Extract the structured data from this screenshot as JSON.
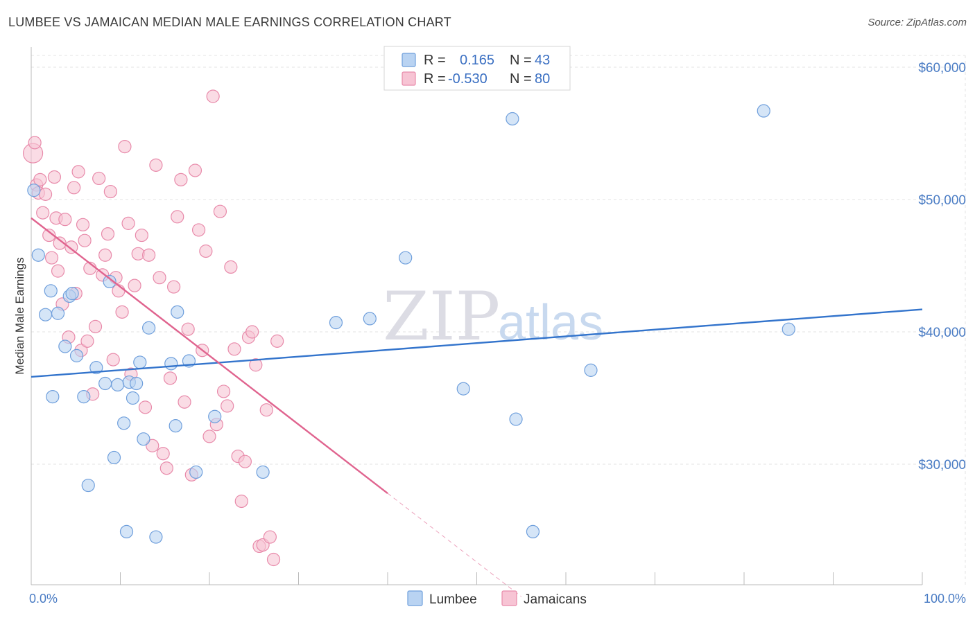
{
  "title": "LUMBEE VS JAMAICAN MEDIAN MALE EARNINGS CORRELATION CHART",
  "source": "Source: ZipAtlas.com",
  "watermark": {
    "part1": "ZIP",
    "part2": "atlas"
  },
  "colors": {
    "lumbee_fill": "#b9d3f2",
    "lumbee_stroke": "#6f9fdc",
    "lumbee_line": "#3374cc",
    "jam_fill": "#f7c4d4",
    "jam_stroke": "#e88aaa",
    "jam_line": "#e0648f",
    "tick_text": "#4a7cc4",
    "grid": "#e3e3e3"
  },
  "legend": {
    "rows": [
      {
        "r_label": "R =",
        "r_value": "0.165",
        "n_label": "N =",
        "n_value": "43"
      },
      {
        "r_label": "R =",
        "r_value": "-0.530",
        "n_label": "N =",
        "n_value": "80"
      }
    ]
  },
  "chart_data": {
    "type": "scatter",
    "title": "LUMBEE VS JAMAICAN MEDIAN MALE EARNINGS CORRELATION CHART",
    "xlabel": "",
    "ylabel": "Median Male Earnings",
    "xlim": [
      0,
      100
    ],
    "ylim": [
      20000,
      61000
    ],
    "x_tick_labels": [
      "0.0%",
      "100.0%"
    ],
    "y_ticks": [
      30000,
      40000,
      50000,
      60000
    ],
    "y_tick_labels": [
      "$30,000",
      "$40,000",
      "$50,000",
      "$60,000"
    ],
    "grid": true,
    "series": [
      {
        "name": "Lumbee",
        "r": 0.165,
        "n": 43,
        "trend": {
          "x": [
            0,
            100
          ],
          "y": [
            36600,
            41700
          ]
        },
        "x": [
          0.3,
          0.8,
          1.6,
          2.2,
          2.4,
          3.0,
          3.8,
          4.3,
          4.6,
          5.1,
          5.9,
          6.4,
          7.3,
          8.3,
          8.8,
          9.3,
          9.7,
          10.4,
          10.7,
          11.0,
          11.4,
          11.8,
          12.2,
          12.6,
          13.2,
          14.0,
          15.7,
          16.2,
          16.4,
          17.7,
          18.5,
          20.6,
          26.0,
          34.2,
          38.0,
          42.0,
          48.5,
          54.0,
          54.4,
          56.3,
          62.8,
          82.2,
          85.0
        ],
        "y": [
          50700,
          45800,
          41300,
          43100,
          35100,
          41400,
          38900,
          42700,
          42900,
          38200,
          35100,
          28400,
          37300,
          36100,
          43800,
          30500,
          36000,
          33100,
          24900,
          36200,
          35000,
          36100,
          37700,
          31900,
          40300,
          24500,
          37600,
          32900,
          41500,
          37800,
          29400,
          33600,
          29400,
          40700,
          41000,
          45600,
          35700,
          56100,
          33400,
          24900,
          37100,
          56700,
          40200
        ]
      },
      {
        "name": "Jamaicans",
        "r": -0.53,
        "n": 80,
        "trend": {
          "x": [
            0,
            40
          ],
          "y": [
            48600,
            27800
          ]
        },
        "trend_ext": {
          "x": [
            40,
            55
          ],
          "y": [
            27800,
            20000
          ]
        },
        "x": [
          0.2,
          0.4,
          0.6,
          0.8,
          1.0,
          1.3,
          1.6,
          2.0,
          2.3,
          2.6,
          2.8,
          3.0,
          3.2,
          3.5,
          3.8,
          4.2,
          4.5,
          4.8,
          5.0,
          5.3,
          5.6,
          5.8,
          6.0,
          6.3,
          6.6,
          6.9,
          7.2,
          7.6,
          8.0,
          8.3,
          8.6,
          8.9,
          9.2,
          9.5,
          9.8,
          10.2,
          10.5,
          10.9,
          11.2,
          11.6,
          12.0,
          12.4,
          12.8,
          13.2,
          13.6,
          14.0,
          14.4,
          14.8,
          15.2,
          15.6,
          16.0,
          16.4,
          16.8,
          17.2,
          17.6,
          18.0,
          18.4,
          18.8,
          19.2,
          19.6,
          20.0,
          20.4,
          20.8,
          21.2,
          21.6,
          22.0,
          22.4,
          22.8,
          23.2,
          23.6,
          24.0,
          24.4,
          24.8,
          25.2,
          25.6,
          26.0,
          26.4,
          26.8,
          27.2,
          27.6
        ],
        "y": [
          53500,
          54300,
          51100,
          50500,
          51500,
          49000,
          50400,
          47300,
          45600,
          51700,
          48600,
          44600,
          46700,
          42100,
          48500,
          39600,
          46400,
          50900,
          42900,
          52100,
          38600,
          48100,
          46900,
          39300,
          44800,
          35300,
          40400,
          51600,
          44300,
          45800,
          47400,
          50600,
          37900,
          44100,
          43100,
          41500,
          54000,
          48200,
          36800,
          43500,
          45900,
          47300,
          34300,
          45800,
          31400,
          52600,
          44100,
          30800,
          29700,
          36500,
          43400,
          48700,
          51500,
          34700,
          40200,
          29200,
          52200,
          47700,
          38600,
          46100,
          32100,
          57800,
          33000,
          49100,
          35500,
          34400,
          44900,
          38700,
          30600,
          27200,
          30200,
          39600,
          40000,
          37500,
          23800,
          23900,
          34100,
          24500,
          22800,
          39300
        ]
      }
    ]
  },
  "bottom_legend": [
    {
      "label": "Lumbee"
    },
    {
      "label": "Jamaicans"
    }
  ]
}
